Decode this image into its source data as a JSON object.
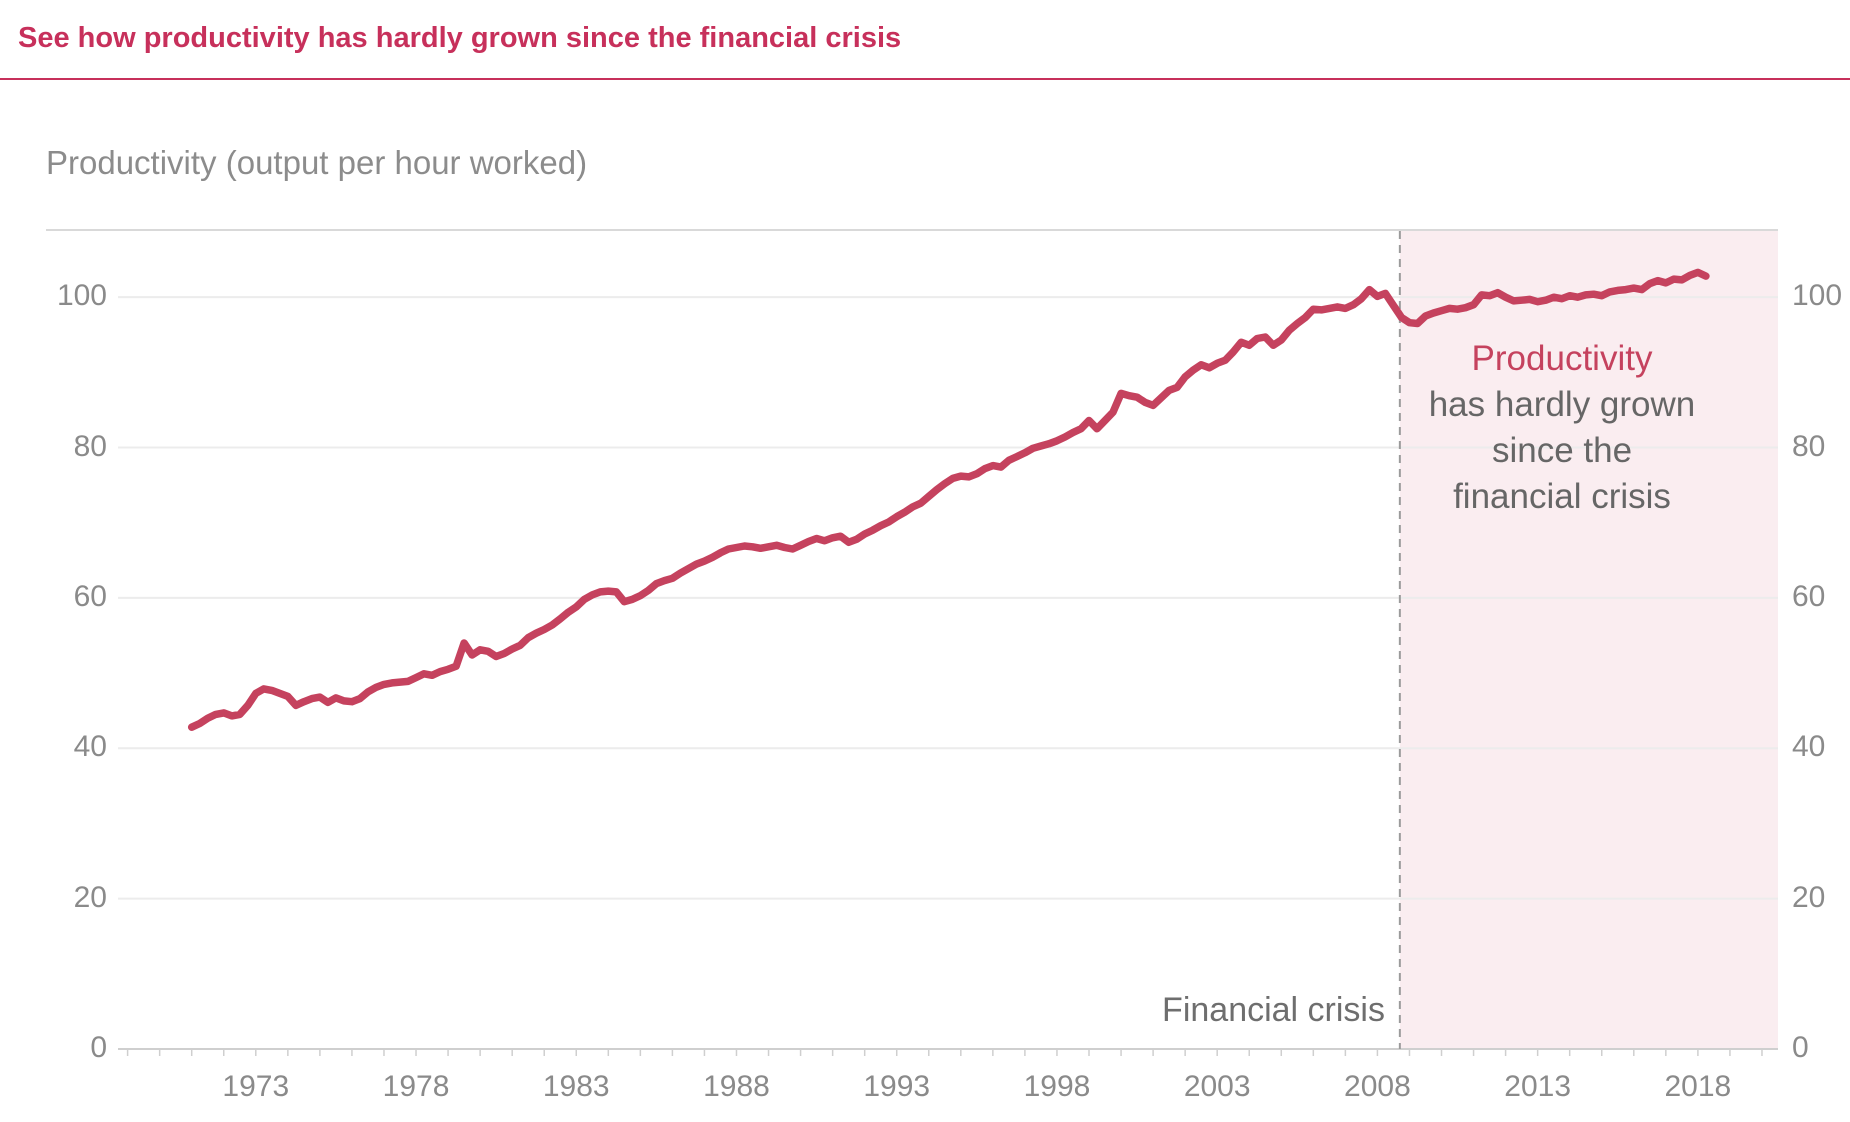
{
  "header": {
    "title": "See how productivity has hardly grown since the financial crisis"
  },
  "chart": {
    "subtitle": "Productivity (output per hour worked)",
    "annotation": {
      "line1": "Productivity",
      "line2": "has hardly grown",
      "line3": "since the",
      "line4": "financial crisis"
    },
    "crisis_label": "Financial crisis"
  },
  "colors": {
    "accent_crimson": "#c7305b",
    "line_crimson": "#c5425e",
    "shaded_pink": "#faedf0",
    "gridline": "#ececec",
    "axis": "#cfcfcf",
    "top_border": "#d9d9d9",
    "dashed_line": "#9b9b9b",
    "label_gray": "#8a8a8a",
    "annotation_gray": "#666666"
  },
  "chart_data": {
    "type": "line",
    "title": "Productivity (output per hour worked)",
    "xlabel": "",
    "ylabel": "",
    "xlim": [
      1968.7,
      2020.5
    ],
    "ylim": [
      0,
      108.8
    ],
    "x_ticks": [
      1973,
      1978,
      1983,
      1988,
      1993,
      1998,
      2003,
      2008,
      2013,
      2018
    ],
    "y_ticks": [
      0,
      20,
      40,
      60,
      80,
      100
    ],
    "minor_x_ticks": {
      "from": 1969,
      "to": 2020,
      "step": 1
    },
    "grid": "horizontal",
    "legend": "none",
    "crisis_line_x": 2008.7,
    "shaded_region": {
      "from": 2008.7,
      "to": 2020.5,
      "color": "#faedf0"
    },
    "line_color": "#c5425e",
    "annotations": [
      {
        "text": "Productivity has hardly grown since the financial crisis",
        "x": 2013.7,
        "y": 80
      },
      {
        "text": "Financial crisis",
        "x": 2008.2,
        "y": 5
      }
    ],
    "series": [
      {
        "name": "Productivity (output per hour worked)",
        "x_start": 1971.0,
        "x_step": 0.25,
        "values": [
          42.8,
          43.3,
          44.0,
          44.5,
          44.7,
          44.3,
          44.5,
          45.7,
          47.3,
          47.9,
          47.7,
          47.3,
          46.9,
          45.7,
          46.2,
          46.6,
          46.8,
          46.1,
          46.7,
          46.3,
          46.2,
          46.6,
          47.5,
          48.1,
          48.5,
          48.7,
          48.8,
          48.9,
          49.4,
          49.9,
          49.7,
          50.2,
          50.5,
          50.9,
          54.0,
          52.4,
          53.1,
          52.9,
          52.2,
          52.6,
          53.2,
          53.7,
          54.7,
          55.3,
          55.8,
          56.4,
          57.2,
          58.1,
          58.8,
          59.8,
          60.4,
          60.8,
          60.9,
          60.8,
          59.5,
          59.8,
          60.3,
          61.0,
          61.9,
          62.3,
          62.6,
          63.3,
          63.9,
          64.5,
          64.9,
          65.4,
          66.0,
          66.5,
          66.7,
          66.9,
          66.8,
          66.6,
          66.8,
          67.0,
          66.7,
          66.5,
          67.0,
          67.5,
          67.9,
          67.6,
          68.0,
          68.2,
          67.4,
          67.8,
          68.5,
          69.0,
          69.6,
          70.1,
          70.8,
          71.4,
          72.1,
          72.6,
          73.5,
          74.4,
          75.2,
          75.9,
          76.2,
          76.1,
          76.5,
          77.2,
          77.6,
          77.4,
          78.3,
          78.8,
          79.3,
          79.9,
          80.2,
          80.5,
          80.9,
          81.4,
          82.0,
          82.5,
          83.6,
          82.5,
          83.6,
          84.7,
          87.2,
          86.9,
          86.7,
          86.0,
          85.6,
          86.6,
          87.6,
          88.0,
          89.4,
          90.3,
          91.0,
          90.6,
          91.2,
          91.6,
          92.7,
          94.0,
          93.6,
          94.5,
          94.7,
          93.6,
          94.3,
          95.6,
          96.5,
          97.3,
          98.4,
          98.3,
          98.5,
          98.7,
          98.5,
          99.0,
          99.8,
          101.0,
          100.1,
          100.5,
          98.9,
          97.3,
          96.6,
          96.5,
          97.5,
          97.9,
          98.2,
          98.5,
          98.4,
          98.6,
          99.0,
          100.3,
          100.2,
          100.6,
          100.0,
          99.5,
          99.6,
          99.7,
          99.4,
          99.6,
          100.0,
          99.8,
          100.2,
          100.0,
          100.3,
          100.4,
          100.2,
          100.7,
          100.9,
          101.0,
          101.2,
          101.0,
          101.8,
          102.2,
          101.9,
          102.4,
          102.3,
          102.9,
          103.3,
          102.8
        ]
      }
    ]
  }
}
